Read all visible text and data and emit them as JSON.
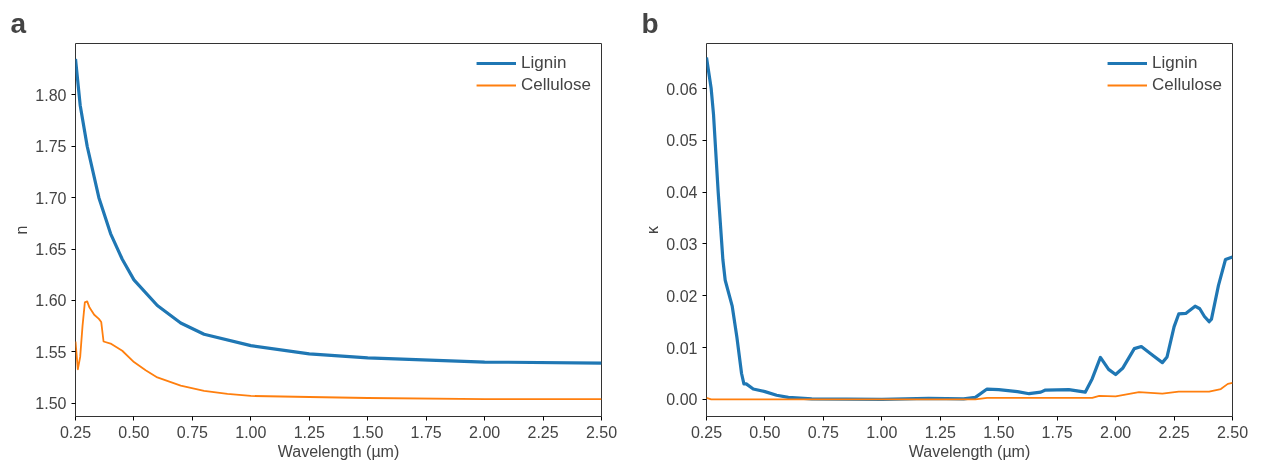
{
  "chart_data": [
    {
      "type": "line",
      "title": "a",
      "xlabel": "Wavelength (µm)",
      "ylabel": "n",
      "xlim": [
        0.25,
        2.5
      ],
      "ylim": [
        1.487,
        1.85
      ],
      "xticks": [
        {
          "value": 0.25,
          "label": "0.25"
        },
        {
          "value": 0.5,
          "label": "0.50"
        },
        {
          "value": 0.75,
          "label": "0.75"
        },
        {
          "value": 1.0,
          "label": "1.00"
        },
        {
          "value": 1.25,
          "label": "1.25"
        },
        {
          "value": 1.5,
          "label": "1.50"
        },
        {
          "value": 1.75,
          "label": "1.75"
        },
        {
          "value": 2.0,
          "label": "2.00"
        },
        {
          "value": 2.25,
          "label": "2.25"
        },
        {
          "value": 2.5,
          "label": "2.50"
        }
      ],
      "yticks": [
        {
          "value": 1.5,
          "label": "1.50"
        },
        1.55,
        {
          "value": 1.6,
          "label": "1.60"
        },
        1.65,
        {
          "value": 1.7,
          "label": "1.70"
        },
        1.75,
        {
          "value": 1.8,
          "label": "1.80"
        }
      ],
      "grid": false,
      "legend": "top right",
      "series": [
        {
          "name": "Lignin",
          "color": "#1f77b4",
          "x": [
            0.25,
            0.27,
            0.3,
            0.35,
            0.4,
            0.45,
            0.5,
            0.6,
            0.7,
            0.8,
            1.0,
            1.25,
            1.5,
            2.0,
            2.5
          ],
          "values": [
            1.835,
            1.79,
            1.75,
            1.7,
            1.665,
            1.64,
            1.62,
            1.595,
            1.578,
            1.567,
            1.556,
            1.548,
            1.544,
            1.54,
            1.539
          ]
        },
        {
          "name": "Cellulose",
          "color": "#ff7f0e",
          "x": [
            0.25,
            0.26,
            0.27,
            0.28,
            0.29,
            0.3,
            0.31,
            0.33,
            0.35,
            0.36,
            0.37,
            0.4,
            0.45,
            0.5,
            0.55,
            0.6,
            0.7,
            0.8,
            0.9,
            1.0,
            1.25,
            1.5,
            2.0,
            2.5
          ],
          "values": [
            1.56,
            1.533,
            1.545,
            1.575,
            1.598,
            1.599,
            1.593,
            1.586,
            1.582,
            1.579,
            1.56,
            1.558,
            1.551,
            1.54,
            1.532,
            1.525,
            1.517,
            1.512,
            1.509,
            1.507,
            1.506,
            1.505,
            1.504,
            1.504
          ]
        }
      ]
    },
    {
      "type": "line",
      "title": "b",
      "xlabel": "Wavelength (µm)",
      "ylabel": "κ",
      "xlim": [
        0.25,
        2.5
      ],
      "ylim": [
        -0.0033,
        0.0687
      ],
      "xticks": [
        {
          "value": 0.25,
          "label": "0.25"
        },
        {
          "value": 0.5,
          "label": "0.50"
        },
        {
          "value": 0.75,
          "label": "0.75"
        },
        {
          "value": 1.0,
          "label": "1.00"
        },
        {
          "value": 1.25,
          "label": "1.25"
        },
        {
          "value": 1.5,
          "label": "1.50"
        },
        {
          "value": 1.75,
          "label": "1.75"
        },
        {
          "value": 2.0,
          "label": "2.00"
        },
        {
          "value": 2.25,
          "label": "2.25"
        },
        {
          "value": 2.5,
          "label": "2.50"
        }
      ],
      "yticks": [
        {
          "value": 0,
          "label": "0.00"
        },
        0.01,
        0.02,
        0.03,
        0.04,
        0.05,
        0.06
      ],
      "grid": false,
      "legend": "top right",
      "series": [
        {
          "name": "Lignin",
          "color": "#1f77b4",
          "x": [
            0.25,
            0.27,
            0.28,
            0.3,
            0.32,
            0.33,
            0.36,
            0.38,
            0.4,
            0.41,
            0.42,
            0.45,
            0.5,
            0.55,
            0.6,
            0.7,
            1.0,
            1.2,
            1.35,
            1.4,
            1.45,
            1.5,
            1.58,
            1.63,
            1.68,
            1.7,
            1.8,
            1.87,
            1.9,
            1.935,
            1.97,
            2.0,
            2.03,
            2.08,
            2.11,
            2.15,
            2.2,
            2.22,
            2.25,
            2.27,
            2.3,
            2.34,
            2.36,
            2.38,
            2.4,
            2.41,
            2.44,
            2.47,
            2.5
          ],
          "values": [
            0.066,
            0.06,
            0.055,
            0.04,
            0.027,
            0.023,
            0.018,
            0.012,
            0.005,
            0.003,
            0.003,
            0.002,
            0.0015,
            0.0008,
            0.0004,
            0.0001,
            0.0,
            0.0002,
            0.0001,
            0.0004,
            0.002,
            0.0019,
            0.0015,
            0.0011,
            0.0014,
            0.0018,
            0.0019,
            0.0014,
            0.004,
            0.0081,
            0.0058,
            0.0048,
            0.006,
            0.0098,
            0.0102,
            0.0088,
            0.0071,
            0.0082,
            0.014,
            0.0165,
            0.0166,
            0.018,
            0.0175,
            0.016,
            0.015,
            0.0155,
            0.022,
            0.027,
            0.0275
          ]
        },
        {
          "name": "Cellulose",
          "color": "#ff7f0e",
          "x": [
            0.25,
            0.27,
            1.4,
            1.45,
            1.9,
            1.93,
            2.0,
            2.1,
            2.2,
            2.27,
            2.4,
            2.45,
            2.48,
            2.5
          ],
          "values": [
            0.0003,
            0.0,
            0.0,
            0.0003,
            0.0003,
            0.0007,
            0.0006,
            0.0014,
            0.0011,
            0.0015,
            0.0015,
            0.002,
            0.003,
            0.0032
          ]
        }
      ]
    }
  ]
}
